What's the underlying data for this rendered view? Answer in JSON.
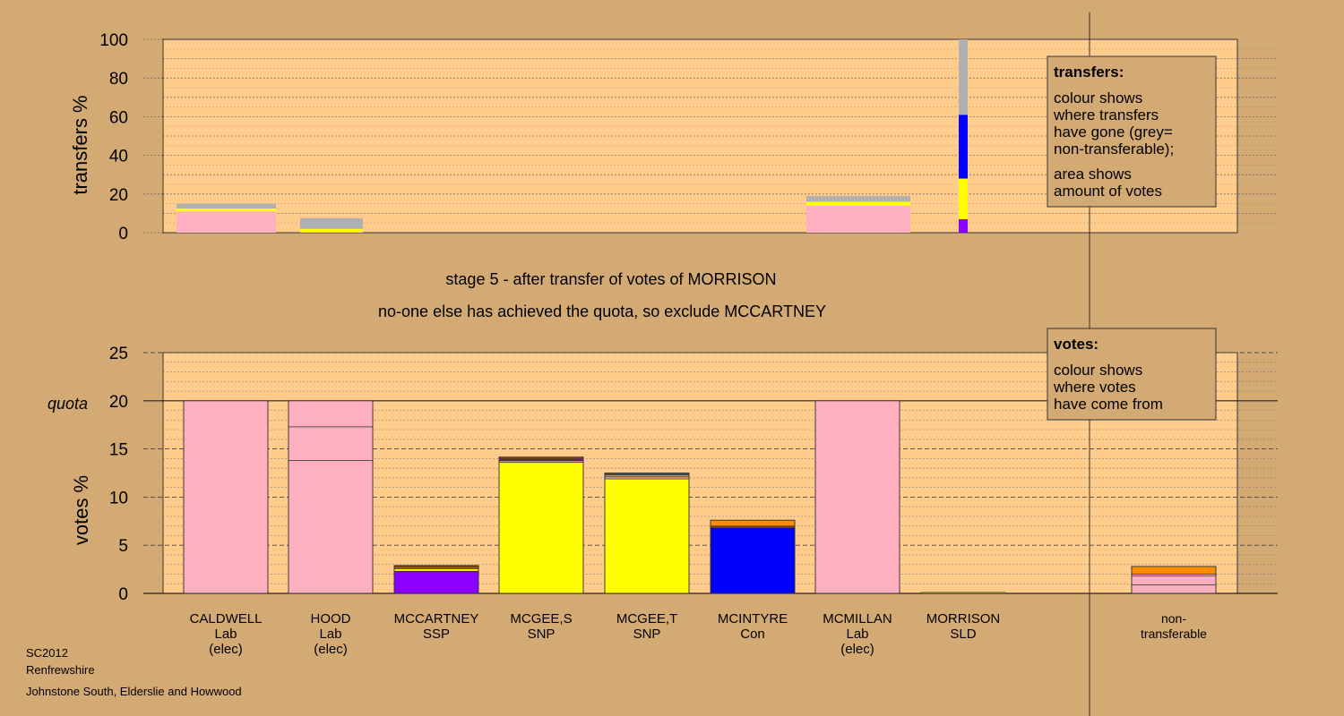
{
  "chart_data": [
    {
      "type": "bar",
      "role": "transfers",
      "ylabel": "transfers %",
      "ylim": [
        0,
        100
      ],
      "yticks": [
        0,
        20,
        40,
        60,
        80,
        100
      ],
      "legend": {
        "title": "transfers:",
        "lines": [
          "colour shows",
          "where transfers",
          "have gone (grey=",
          "non-transferable);",
          "area shows",
          "amount of votes"
        ]
      },
      "categories": [
        "CALDWELL",
        "HOOD",
        "MCCARTNEY",
        "MCGEE,S",
        "MCGEE,T",
        "MCINTYRE",
        "MCMILLAN",
        "MORRISON"
      ],
      "stacks": [
        {
          "category": "CALDWELL",
          "segments": [
            {
              "value": 11,
              "color": "#ffb0c0"
            },
            {
              "value": 1.5,
              "color": "#ffff00"
            },
            {
              "value": 2.5,
              "color": "#b0b0b0"
            }
          ]
        },
        {
          "category": "HOOD",
          "segments": [
            {
              "value": 0.5,
              "color": "#ffb0c0"
            },
            {
              "value": 1.5,
              "color": "#ffff00"
            },
            {
              "value": 5.5,
              "color": "#b0b0b0"
            }
          ]
        },
        {
          "category": "MCMILLAN",
          "segments": [
            {
              "value": 14,
              "color": "#ffb0c0"
            },
            {
              "value": 2,
              "color": "#ffff00"
            },
            {
              "value": 3,
              "color": "#b0b0b0"
            }
          ]
        },
        {
          "category": "MORRISON",
          "segments": [
            {
              "value": 7,
              "color": "#8b00ff"
            },
            {
              "value": 21,
              "color": "#ffff00"
            },
            {
              "value": 33,
              "color": "#0000ff"
            },
            {
              "value": 39,
              "color": "#b0b0b0"
            }
          ]
        }
      ]
    },
    {
      "type": "bar",
      "role": "votes",
      "ylabel": "votes %",
      "ylim": [
        0,
        25
      ],
      "yticks": [
        0,
        5,
        10,
        15,
        20,
        25
      ],
      "quota": 20,
      "quota_label": "quota",
      "legend": {
        "title": "votes:",
        "lines": [
          "colour shows",
          "where votes",
          "have come from"
        ]
      },
      "categories": [
        {
          "name": "CALDWELL",
          "party": "Lab",
          "note": "(elec)"
        },
        {
          "name": "HOOD",
          "party": "Lab",
          "note": "(elec)"
        },
        {
          "name": "MCCARTNEY",
          "party": "SSP",
          "note": ""
        },
        {
          "name": "MCGEE,S",
          "party": "SNP",
          "note": ""
        },
        {
          "name": "MCGEE,T",
          "party": "SNP",
          "note": ""
        },
        {
          "name": "MCINTYRE",
          "party": "Con",
          "note": ""
        },
        {
          "name": "MCMILLAN",
          "party": "Lab",
          "note": "(elec)"
        },
        {
          "name": "MORRISON",
          "party": "SLD",
          "note": ""
        },
        {
          "name": "non-",
          "party": "transferable",
          "note": ""
        }
      ],
      "stacks": [
        {
          "category": "CALDWELL",
          "segments": [
            {
              "value": 20,
              "color": "#ffb0c0"
            }
          ]
        },
        {
          "category": "HOOD",
          "segments": [
            {
              "value": 13.8,
              "color": "#ffb0c0"
            },
            {
              "value": 3.5,
              "color": "#ffb0c0"
            },
            {
              "value": 2.7,
              "color": "#ffb0c0"
            }
          ]
        },
        {
          "category": "MCCARTNEY",
          "segments": [
            {
              "value": 2.3,
              "color": "#8b00ff"
            },
            {
              "value": 0.25,
              "color": "#ffff00"
            },
            {
              "value": 0.15,
              "color": "#ff8c00"
            },
            {
              "value": 0.2,
              "color": "#8b4513"
            }
          ]
        },
        {
          "category": "MCGEE,S",
          "segments": [
            {
              "value": 13.6,
              "color": "#ffff00"
            },
            {
              "value": 0.2,
              "color": "#ff8c00"
            },
            {
              "value": 0.15,
              "color": "#8b00ff"
            },
            {
              "value": 0.2,
              "color": "#8b4513"
            }
          ]
        },
        {
          "category": "MCGEE,T",
          "segments": [
            {
              "value": 11.9,
              "color": "#ffff00"
            },
            {
              "value": 0.2,
              "color": "#ffb0c0"
            },
            {
              "value": 0.2,
              "color": "#ff8c00"
            },
            {
              "value": 0.2,
              "color": "#8b4513"
            }
          ]
        },
        {
          "category": "MCINTYRE",
          "segments": [
            {
              "value": 6.8,
              "color": "#0000ff"
            },
            {
              "value": 0.2,
              "color": "#8b4513"
            },
            {
              "value": 0.6,
              "color": "#ff8c00"
            }
          ]
        },
        {
          "category": "MCMILLAN",
          "segments": [
            {
              "value": 20,
              "color": "#ffb0c0"
            }
          ]
        },
        {
          "category": "MORRISON",
          "segments": [
            {
              "value": 0.1,
              "color": "#ffff00"
            }
          ]
        },
        {
          "category": "non-transferable",
          "segments": [
            {
              "value": 0.9,
              "color": "#ffb0c0"
            },
            {
              "value": 0.9,
              "color": "#ffb0c0"
            },
            {
              "value": 0.2,
              "color": "#ffb0c0"
            },
            {
              "value": 0.8,
              "color": "#ff8c00"
            }
          ]
        }
      ]
    }
  ],
  "stage": {
    "line1": "stage 5 - after transfer of votes of MORRISON",
    "line2": "no-one else has achieved the quota, so exclude MCCARTNEY"
  },
  "footer": [
    "SC2012",
    "Renfrewshire",
    "Johnstone South, Elderslie and Howwood"
  ]
}
